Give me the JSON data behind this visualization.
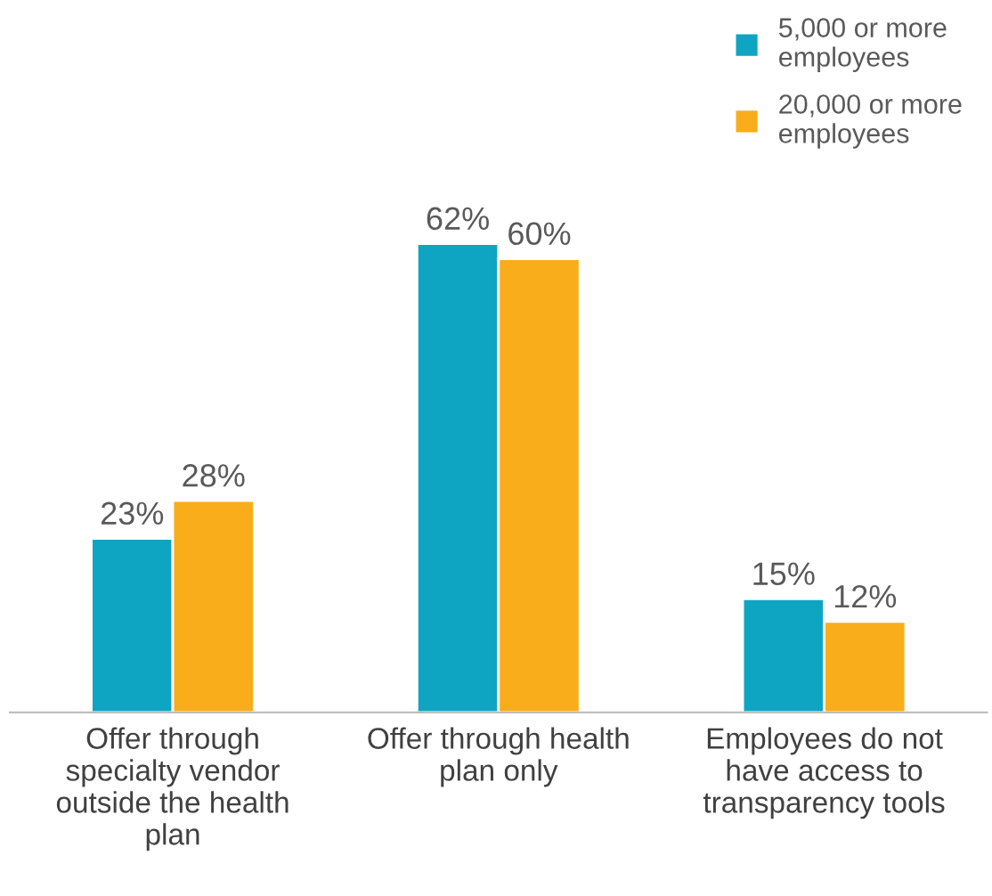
{
  "chart_data": {
    "type": "bar",
    "categories": [
      "Offer through\nspecialty vendor\noutside the health\nplan",
      "Offer through health\nplan only",
      "Employees do not\nhave access to\ntransparency tools"
    ],
    "series": [
      {
        "name": "5,000 or more\nemployees",
        "color": "#0ea5c2",
        "values": [
          23,
          62,
          15
        ],
        "value_labels": [
          "23%",
          "62%",
          "15%"
        ]
      },
      {
        "name": "20,000 or more\nemployees",
        "color": "#f9ad1b",
        "values": [
          28,
          60,
          12
        ],
        "value_labels": [
          "28%",
          "60%",
          "12%"
        ]
      }
    ],
    "legend": "top right",
    "grid": false
  }
}
